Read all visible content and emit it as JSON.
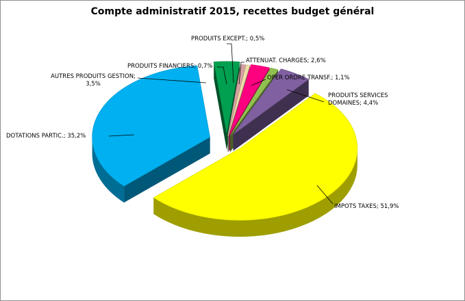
{
  "chart_data": {
    "type": "pie",
    "title": "Compte administratif 2015, recettes budget général",
    "slices": [
      {
        "label": "PRODUITS SERVICES DOMAINES; 4,4%",
        "name": "PRODUITS SERVICES DOMAINES",
        "value": 4.4,
        "color": "#8060a0"
      },
      {
        "label": "IMPOTS TAXES; 51,9%",
        "name": "IMPOTS TAXES",
        "value": 51.9,
        "color": "#ffff00"
      },
      {
        "label": "DOTATIONS PARTIC.; 35,2%",
        "name": "DOTATIONS PARTIC.",
        "value": 35.2,
        "color": "#00b0f0"
      },
      {
        "label": "AUTRES PRODUITS GESTION; 3,5%",
        "name": "AUTRES PRODUITS GESTION",
        "value": 3.5,
        "color": "#00a050"
      },
      {
        "label": "PRODUITS FINANCIERS; 0,7%",
        "name": "PRODUITS FINANCIERS",
        "value": 0.7,
        "color": "#d6a0a0"
      },
      {
        "label": "PRODUITS EXCEPT.; 0,5%",
        "name": "PRODUITS EXCEPT.",
        "value": 0.5,
        "color": "#f2e0a8"
      },
      {
        "label": "ATTENUAT. CHARGES; 2,6%",
        "name": "ATTENUAT. CHARGES",
        "value": 2.6,
        "color": "#ff0080"
      },
      {
        "label": "OPER ORDRE TRANSF.; 1,1%",
        "name": "OPER ORDRE TRANSF.",
        "value": 1.1,
        "color": "#92c050"
      }
    ],
    "legend": "none"
  }
}
